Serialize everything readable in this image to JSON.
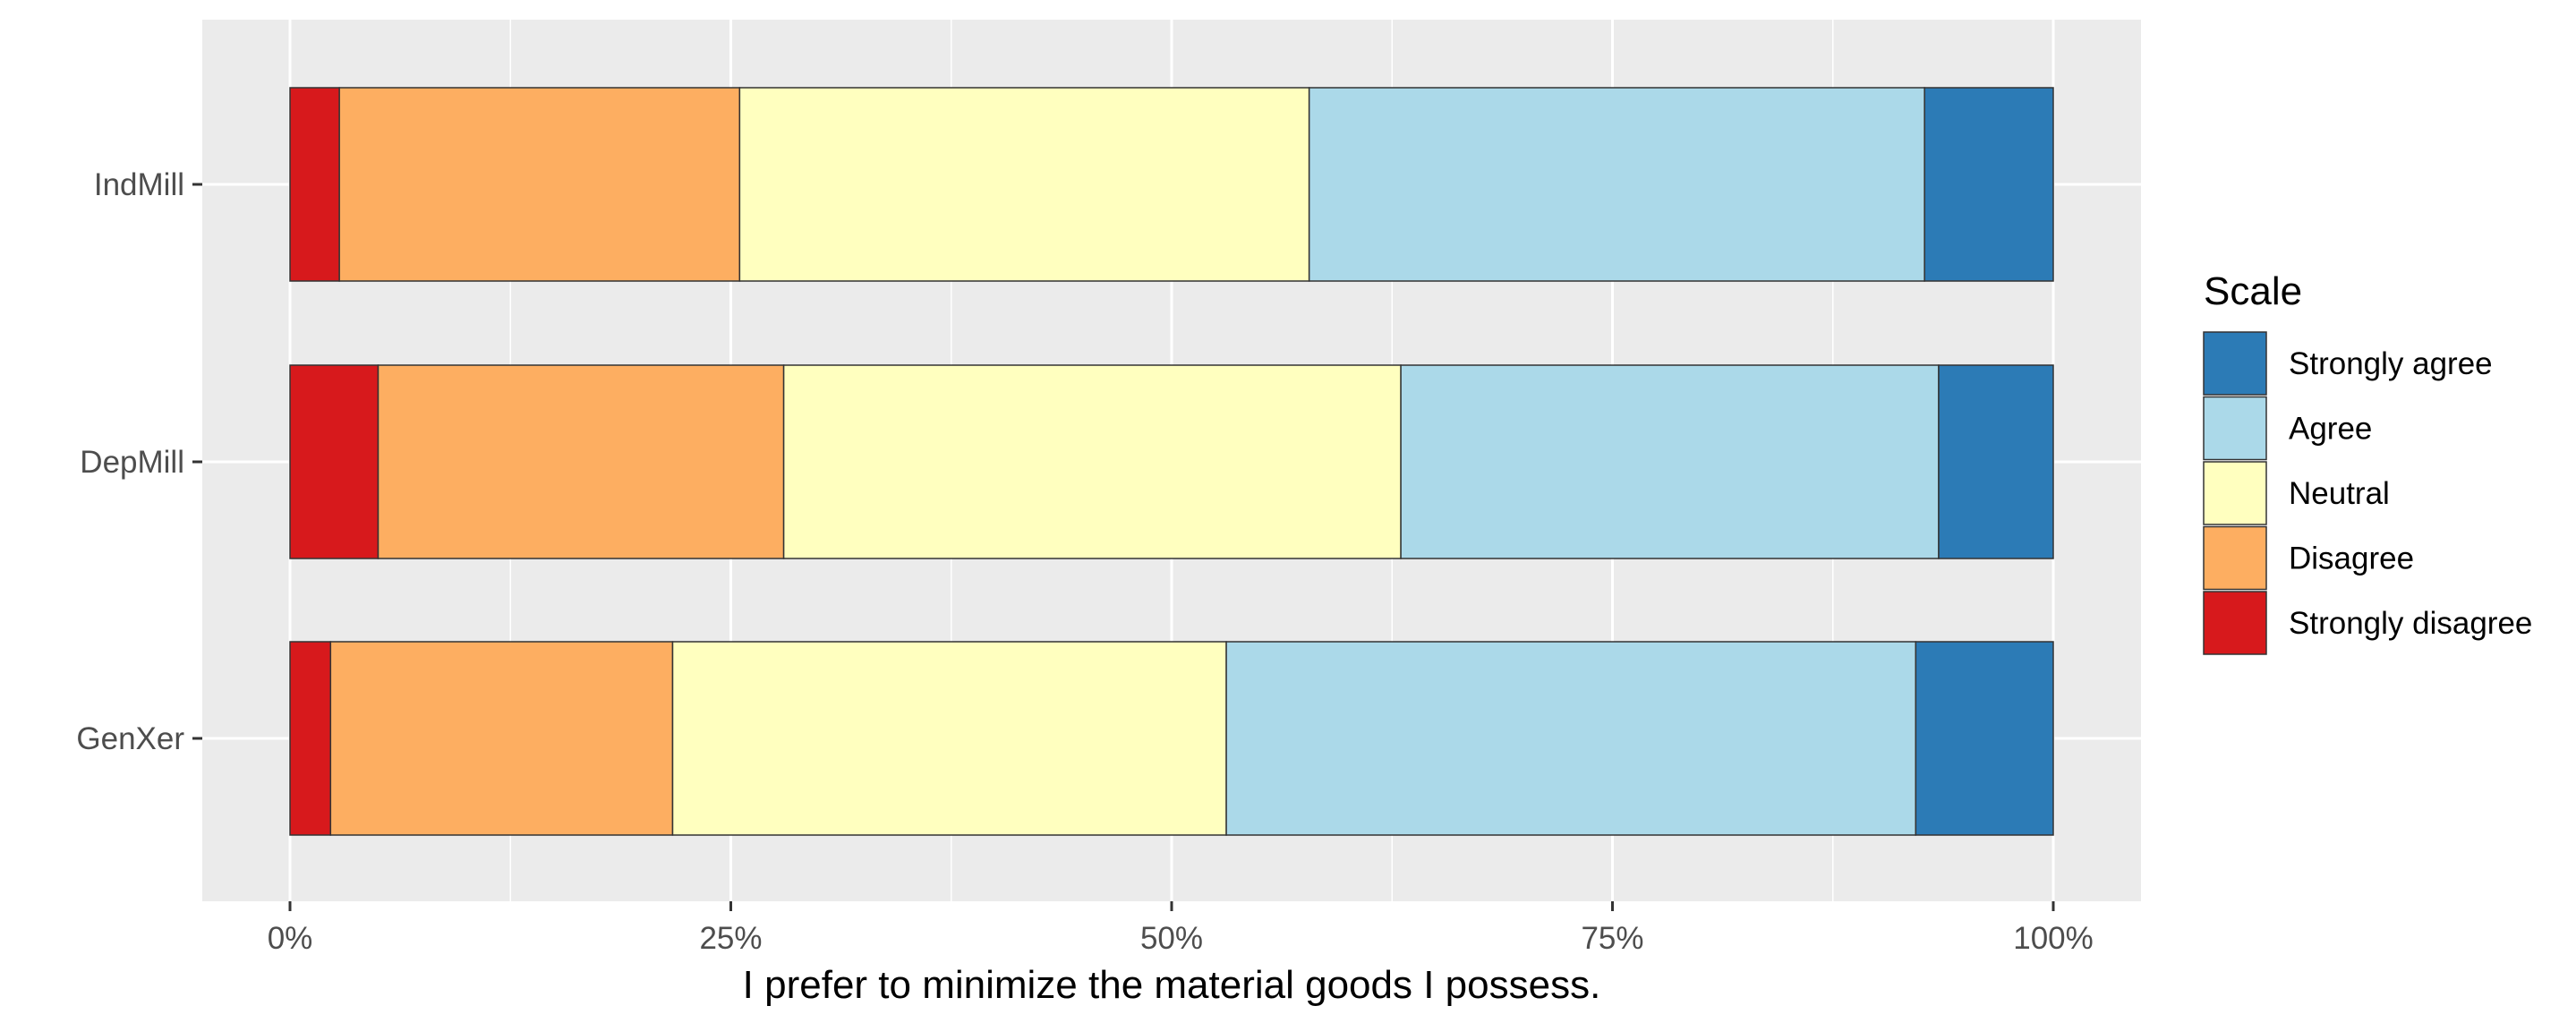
{
  "chart_data": {
    "type": "bar",
    "orientation": "horizontal",
    "stacked": "percent",
    "categories": [
      "IndMill",
      "DepMill",
      "GenXer"
    ],
    "series": [
      {
        "name": "Strongly disagree",
        "color": "#d7191c",
        "values": [
          2.8,
          5.0,
          2.3
        ]
      },
      {
        "name": "Disagree",
        "color": "#fdae61",
        "values": [
          22.7,
          23.0,
          19.4
        ]
      },
      {
        "name": "Neutral",
        "color": "#ffffbf",
        "values": [
          32.3,
          35.0,
          31.4
        ]
      },
      {
        "name": "Agree",
        "color": "#abd9e9",
        "values": [
          34.9,
          30.5,
          39.1
        ]
      },
      {
        "name": "Strongly agree",
        "color": "#2c7bb6",
        "values": [
          7.3,
          6.5,
          7.8
        ]
      }
    ],
    "xlabel": "I prefer to minimize the material goods I possess.",
    "ylabel": "",
    "xlim": [
      0,
      100
    ],
    "xticks": [
      0,
      25,
      50,
      75,
      100
    ],
    "xtick_labels": [
      "0%",
      "25%",
      "50%",
      "75%",
      "100%"
    ],
    "legend": {
      "title": "Scale",
      "placement": "right",
      "order": [
        "Strongly agree",
        "Agree",
        "Neutral",
        "Disagree",
        "Strongly disagree"
      ]
    },
    "grid": true,
    "panel_color": "#ebebeb",
    "grid_color": "#ffffff"
  }
}
